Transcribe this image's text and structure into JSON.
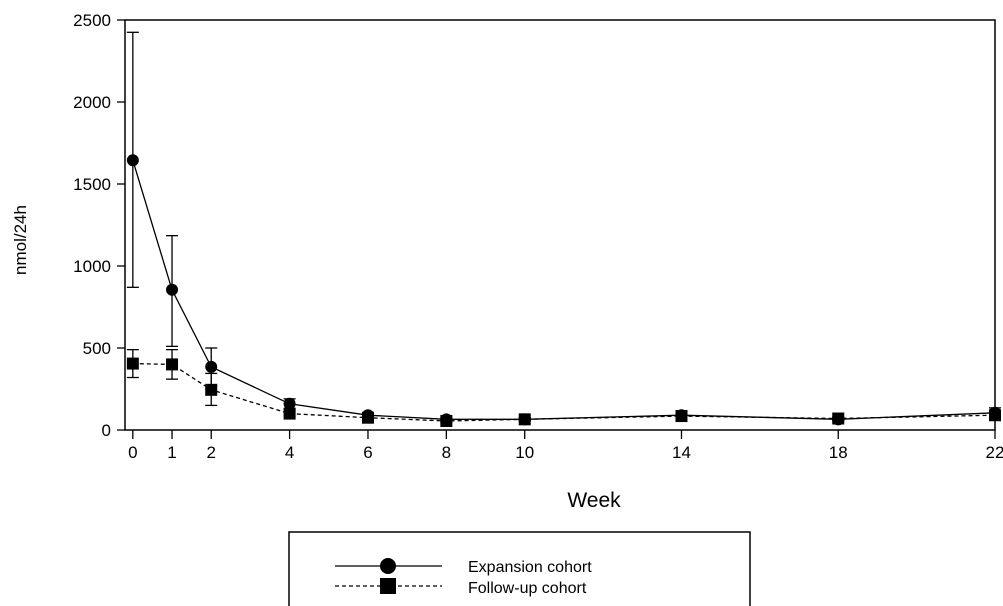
{
  "chart_data": {
    "type": "line",
    "xlabel": "Week",
    "ylabel": "nmol/24h",
    "xlim": [
      -0.2,
      22
    ],
    "ylim": [
      0,
      2500
    ],
    "x_ticks": [
      0,
      1,
      2,
      4,
      6,
      8,
      10,
      14,
      18,
      22
    ],
    "y_ticks": [
      0,
      500,
      1000,
      1500,
      2000,
      2500
    ],
    "grid": false,
    "legend_position": "bottom-center",
    "series": [
      {
        "name": "Expansion cohort",
        "line_style": "solid",
        "marker": "circle",
        "color": "#000000",
        "points": [
          {
            "x": 0,
            "y": 1645,
            "err_low": 870,
            "err_high": 2425
          },
          {
            "x": 1,
            "y": 855,
            "err_low": 510,
            "err_high": 1185
          },
          {
            "x": 2,
            "y": 385,
            "err_low": 270,
            "err_high": 500
          },
          {
            "x": 4,
            "y": 160,
            "err_low": 130,
            "err_high": 190
          },
          {
            "x": 6,
            "y": 90,
            "err_low": 75,
            "err_high": 105
          },
          {
            "x": 8,
            "y": 65,
            "err_low": 55,
            "err_high": 75
          },
          {
            "x": 10,
            "y": 65,
            "err_low": 55,
            "err_high": 75
          },
          {
            "x": 14,
            "y": 90,
            "err_low": 75,
            "err_high": 105
          },
          {
            "x": 18,
            "y": 65,
            "err_low": 55,
            "err_high": 75
          },
          {
            "x": 22,
            "y": 105,
            "err_low": 80,
            "err_high": 135
          }
        ]
      },
      {
        "name": "Follow-up cohort",
        "line_style": "dashed",
        "marker": "square",
        "color": "#000000",
        "points": [
          {
            "x": 0,
            "y": 405,
            "err_low": 320,
            "err_high": 490
          },
          {
            "x": 1,
            "y": 400,
            "err_low": 310,
            "err_high": 490
          },
          {
            "x": 2,
            "y": 245,
            "err_low": 150,
            "err_high": 345
          },
          {
            "x": 4,
            "y": 100,
            "err_low": 85,
            "err_high": 115
          },
          {
            "x": 6,
            "y": 75,
            "err_low": 65,
            "err_high": 85
          },
          {
            "x": 8,
            "y": 55,
            "err_low": 45,
            "err_high": 65
          },
          {
            "x": 10,
            "y": 65,
            "err_low": 55,
            "err_high": 75
          },
          {
            "x": 14,
            "y": 85,
            "err_low": 75,
            "err_high": 95
          },
          {
            "x": 18,
            "y": 70,
            "err_low": 60,
            "err_high": 80
          },
          {
            "x": 22,
            "y": 90,
            "err_low": 70,
            "err_high": 110
          }
        ]
      }
    ]
  }
}
